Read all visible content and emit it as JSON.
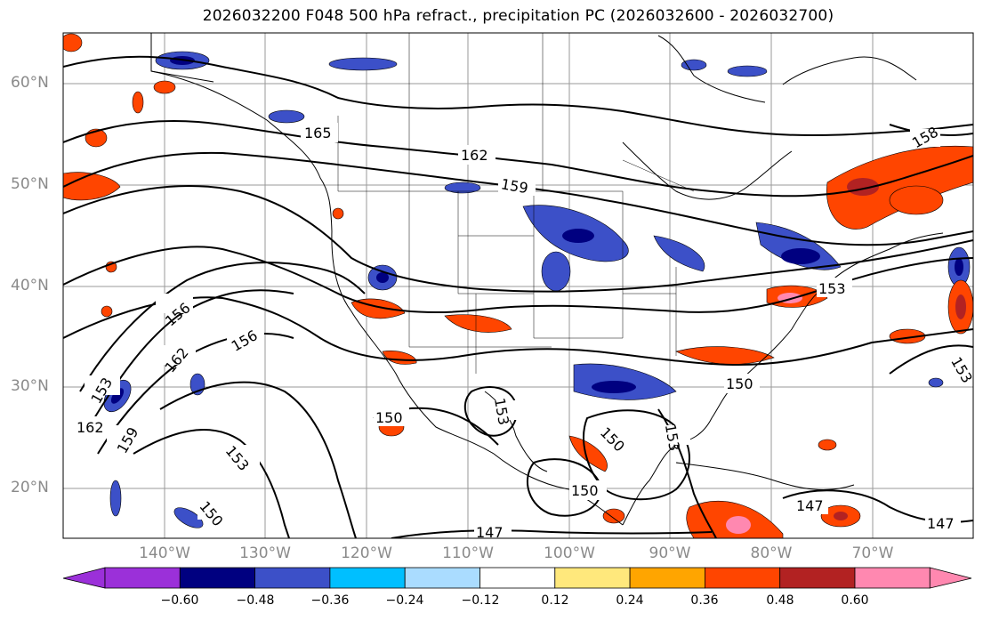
{
  "title": "2026032200 F048 500 hPa refract., precipitation PC (2026032600 - 2026032700)",
  "latitudes": [
    "60°N",
    "50°N",
    "40°N",
    "30°N",
    "20°N"
  ],
  "longitudes": [
    "140°W",
    "130°W",
    "120°W",
    "110°W",
    "100°W",
    "90°W",
    "80°W",
    "70°W"
  ],
  "colorbar": {
    "colors": [
      "#9b30d9",
      "#000080",
      "#3c50c8",
      "#00bfff",
      "#aadcff",
      "#ffffff",
      "#ffe87c",
      "#ffa500",
      "#ff4500",
      "#b22222",
      "#ff88b0"
    ],
    "labels": [
      "−0.60",
      "−0.48",
      "−0.36",
      "−0.24",
      "−0.12",
      "0.12",
      "0.24",
      "0.36",
      "0.48",
      "0.60"
    ]
  },
  "contour_labels": [
    "165",
    "162",
    "159",
    "156",
    "156",
    "162",
    "153",
    "162",
    "159",
    "153",
    "150",
    "150",
    "153",
    "150",
    "153",
    "150",
    "153",
    "153",
    "150",
    "147",
    "147",
    "147",
    "158"
  ]
}
